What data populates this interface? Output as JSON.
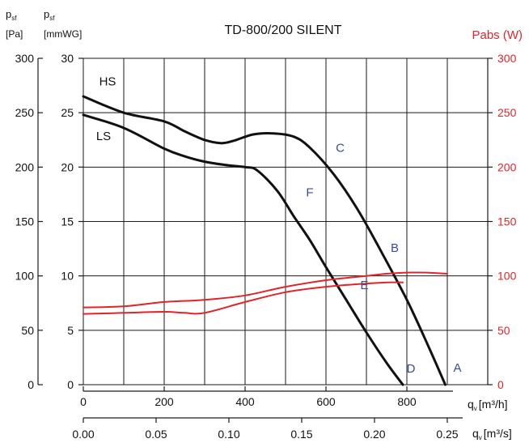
{
  "chart_data": {
    "type": "line",
    "title": "TD-800/200 SILENT",
    "colors": {
      "pressure": "#111111",
      "power": "#e0252a",
      "points": "#3b4a9e"
    },
    "left_axis_pa": {
      "label_main": "p",
      "label_sub": "sf",
      "unit": "[Pa]",
      "range": [
        0,
        300
      ],
      "ticks": [
        "0",
        "50",
        "100",
        "150",
        "200",
        "250",
        "300"
      ]
    },
    "left_axis_mmwg": {
      "label_main": "p",
      "label_sub": "sf",
      "unit": "[mmWG]",
      "range": [
        0,
        30
      ],
      "ticks": [
        "0",
        "5",
        "10",
        "15",
        "20",
        "25",
        "30"
      ]
    },
    "right_axis_power": {
      "label": "Pabs (W)",
      "range": [
        0,
        300
      ],
      "ticks": [
        "0",
        "50",
        "100",
        "150",
        "200",
        "250",
        "300"
      ]
    },
    "x_axis_m3h": {
      "label_main": "q",
      "label_sub": "v",
      "unit": "[m³/h]",
      "range": [
        0,
        1000
      ],
      "ticks": [
        {
          "v": 0,
          "t": "0"
        },
        {
          "v": 200,
          "t": "200"
        },
        {
          "v": 400,
          "t": "400"
        },
        {
          "v": 600,
          "t": "600"
        },
        {
          "v": 800,
          "t": "800"
        }
      ]
    },
    "x_axis_m3s": {
      "label_main": "q",
      "label_sub": "v",
      "unit": "[m³/s]",
      "range": [
        0,
        0.2778
      ],
      "ticks": [
        {
          "v": 0.0,
          "t": "0.00"
        },
        {
          "v": 0.05,
          "t": "0.05"
        },
        {
          "v": 0.1,
          "t": "0.10"
        },
        {
          "v": 0.15,
          "t": "0.15"
        },
        {
          "v": 0.2,
          "t": "0.20"
        },
        {
          "v": 0.25,
          "t": "0.25"
        }
      ]
    },
    "grid": true,
    "series": [
      {
        "name": "HS",
        "kind": "pressure",
        "axis": "pa",
        "x": [
          0,
          100,
          200,
          250,
          300,
          340,
          370,
          420,
          470,
          520,
          560,
          620,
          680,
          740,
          800,
          850,
          895
        ],
        "y": [
          265,
          250,
          242,
          233,
          225,
          222,
          224,
          230,
          231,
          228,
          218,
          193,
          160,
          120,
          78,
          38,
          0
        ]
      },
      {
        "name": "LS",
        "kind": "pressure",
        "axis": "pa",
        "x": [
          0,
          100,
          200,
          250,
          300,
          350,
          400,
          430,
          480,
          520,
          560,
          600,
          650,
          700,
          750,
          790
        ],
        "y": [
          248,
          236,
          217,
          210,
          205,
          202,
          200,
          197,
          178,
          155,
          133,
          108,
          78,
          48,
          20,
          0
        ]
      },
      {
        "name": "",
        "kind": "power",
        "axis": "power",
        "x": [
          0,
          100,
          200,
          300,
          400,
          500,
          600,
          700,
          750,
          800,
          850,
          900
        ],
        "y": [
          71,
          72,
          76,
          78,
          82,
          90,
          96,
          100,
          102,
          103,
          103,
          102
        ]
      },
      {
        "name": "",
        "kind": "power",
        "axis": "power",
        "x": [
          0,
          100,
          200,
          250,
          300,
          400,
          500,
          600,
          700,
          750,
          790
        ],
        "y": [
          65,
          66,
          67,
          66,
          66,
          76,
          85,
          90,
          93,
          94,
          94
        ]
      }
    ],
    "point_labels": [
      {
        "t": "A",
        "x": 925,
        "y": 12
      },
      {
        "t": "B",
        "x": 770,
        "y": 122
      },
      {
        "t": "C",
        "x": 635,
        "y": 214
      },
      {
        "t": "D",
        "x": 810,
        "y": 11
      },
      {
        "t": "E",
        "x": 695,
        "y": 88
      },
      {
        "t": "F",
        "x": 560,
        "y": 173
      }
    ],
    "curve_labels": [
      {
        "t": "HS",
        "x": 60,
        "y": 275
      },
      {
        "t": "LS",
        "x": 50,
        "y": 225
      }
    ]
  }
}
